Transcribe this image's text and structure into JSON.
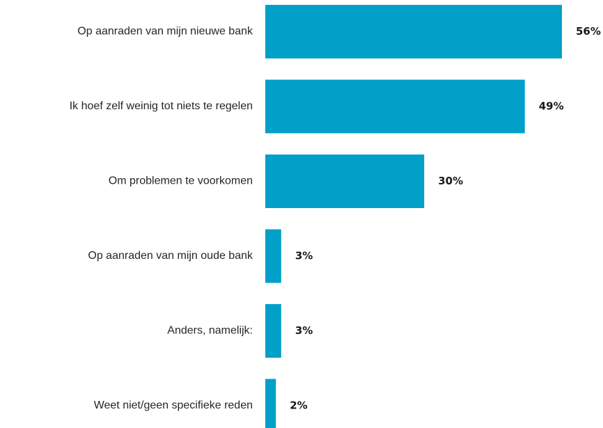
{
  "chart_data": {
    "type": "bar",
    "orientation": "horizontal",
    "categories": [
      "Op aanraden van mijn nieuwe bank",
      "Ik hoef zelf weinig tot niets te regelen",
      "Om problemen te voorkomen",
      "Op aanraden van mijn oude bank",
      "Anders, namelijk:",
      "Weet niet/geen specifieke reden"
    ],
    "values": [
      56,
      49,
      30,
      3,
      3,
      2
    ],
    "value_labels": [
      "56%",
      "49%",
      "30%",
      "3%",
      "3%",
      "2%"
    ],
    "unit": "%",
    "xlim": [
      0,
      56
    ],
    "grid": false,
    "legend": "none",
    "colors": {
      "bar": "#00A0C8"
    }
  }
}
